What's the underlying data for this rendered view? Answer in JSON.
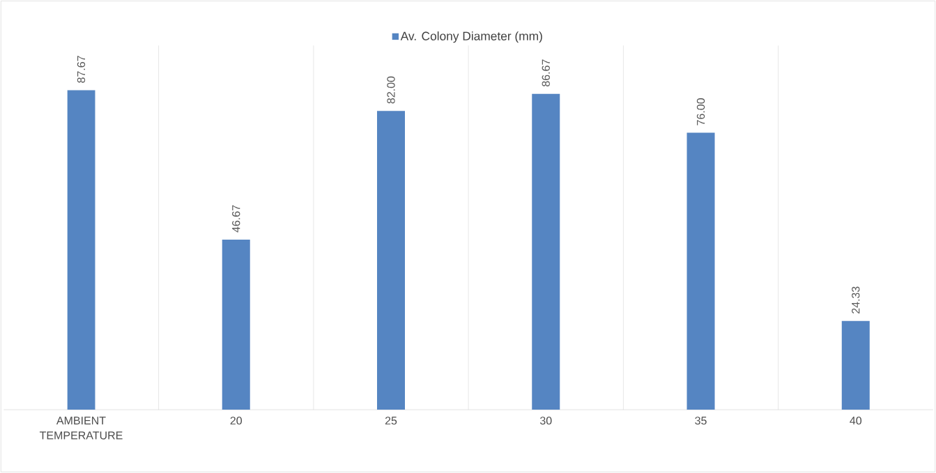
{
  "chart_data": {
    "type": "bar",
    "categories": [
      "AMBIENT TEMPERATURE",
      "20",
      "25",
      "30",
      "35",
      "40"
    ],
    "series": [
      {
        "name": "Av. Colony Diameter (mm)",
        "color": "#5585c2",
        "values": [
          87.67,
          46.67,
          82.0,
          86.67,
          76.0,
          24.33
        ],
        "value_labels": [
          "87.67",
          "46.67",
          "82.00",
          "86.67",
          "76.00",
          "24.33"
        ]
      }
    ],
    "grid": "x",
    "legend": "top"
  }
}
